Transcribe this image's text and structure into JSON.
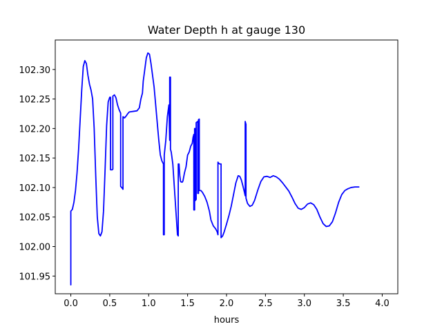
{
  "chart_data": {
    "type": "line",
    "title": "Water Depth h at gauge 130",
    "xlabel": "hours",
    "ylabel": "",
    "xlim": [
      -0.2,
      4.2
    ],
    "ylim": [
      101.92,
      102.35
    ],
    "xticks": [
      0.0,
      0.5,
      1.0,
      1.5,
      2.0,
      2.5,
      3.0,
      3.5,
      4.0
    ],
    "xtick_labels": [
      "0.0",
      "0.5",
      "1.0",
      "1.5",
      "2.0",
      "2.5",
      "3.0",
      "3.5",
      "4.0"
    ],
    "yticks": [
      101.95,
      102.0,
      102.05,
      102.1,
      102.15,
      102.2,
      102.25,
      102.3
    ],
    "ytick_labels": [
      "101.95",
      "102.00",
      "102.05",
      "102.10",
      "102.15",
      "102.20",
      "102.25",
      "102.30"
    ],
    "grid": false,
    "series": [
      {
        "color": "#0000ff",
        "points": [
          [
            0.0,
            101.935
          ],
          [
            0.0,
            102.06
          ],
          [
            0.02,
            102.063
          ],
          [
            0.04,
            102.075
          ],
          [
            0.06,
            102.095
          ],
          [
            0.08,
            102.125
          ],
          [
            0.1,
            102.165
          ],
          [
            0.12,
            102.215
          ],
          [
            0.14,
            102.265
          ],
          [
            0.16,
            102.305
          ],
          [
            0.18,
            102.315
          ],
          [
            0.2,
            102.31
          ],
          [
            0.22,
            102.29
          ],
          [
            0.24,
            102.275
          ],
          [
            0.26,
            102.265
          ],
          [
            0.28,
            102.25
          ],
          [
            0.3,
            102.2
          ],
          [
            0.32,
            102.12
          ],
          [
            0.34,
            102.05
          ],
          [
            0.36,
            102.022
          ],
          [
            0.38,
            102.018
          ],
          [
            0.4,
            102.025
          ],
          [
            0.42,
            102.06
          ],
          [
            0.44,
            102.13
          ],
          [
            0.46,
            102.205
          ],
          [
            0.48,
            102.245
          ],
          [
            0.5,
            102.253
          ],
          [
            0.51,
            102.253
          ],
          [
            0.51,
            102.13
          ],
          [
            0.53,
            102.13
          ],
          [
            0.54,
            102.131
          ],
          [
            0.54,
            102.255
          ],
          [
            0.56,
            102.257
          ],
          [
            0.58,
            102.252
          ],
          [
            0.6,
            102.24
          ],
          [
            0.62,
            102.232
          ],
          [
            0.64,
            102.226
          ],
          [
            0.64,
            102.102
          ],
          [
            0.66,
            102.099
          ],
          [
            0.67,
            102.097
          ],
          [
            0.67,
            102.22
          ],
          [
            0.69,
            102.218
          ],
          [
            0.71,
            102.221
          ],
          [
            0.73,
            102.225
          ],
          [
            0.75,
            102.228
          ],
          [
            0.8,
            102.229
          ],
          [
            0.85,
            102.23
          ],
          [
            0.88,
            102.235
          ],
          [
            0.9,
            102.25
          ],
          [
            0.92,
            102.26
          ],
          [
            0.93,
            102.28
          ],
          [
            0.95,
            102.3
          ],
          [
            0.97,
            102.32
          ],
          [
            0.99,
            102.328
          ],
          [
            1.01,
            102.326
          ],
          [
            1.03,
            102.31
          ],
          [
            1.05,
            102.29
          ],
          [
            1.07,
            102.27
          ],
          [
            1.09,
            102.24
          ],
          [
            1.11,
            102.21
          ],
          [
            1.13,
            102.18
          ],
          [
            1.15,
            102.155
          ],
          [
            1.17,
            102.145
          ],
          [
            1.19,
            102.14
          ],
          [
            1.19,
            102.02
          ],
          [
            1.2,
            102.02
          ],
          [
            1.2,
            102.155
          ],
          [
            1.22,
            102.18
          ],
          [
            1.24,
            102.22
          ],
          [
            1.26,
            102.24
          ],
          [
            1.27,
            102.18
          ],
          [
            1.27,
            102.287
          ],
          [
            1.28,
            102.287
          ],
          [
            1.28,
            102.165
          ],
          [
            1.29,
            102.16
          ],
          [
            1.31,
            102.14
          ],
          [
            1.33,
            102.1
          ],
          [
            1.35,
            102.06
          ],
          [
            1.37,
            102.02
          ],
          [
            1.38,
            102.018
          ],
          [
            1.38,
            102.14
          ],
          [
            1.39,
            102.14
          ],
          [
            1.4,
            102.12
          ],
          [
            1.41,
            102.11
          ],
          [
            1.43,
            102.109
          ],
          [
            1.44,
            102.111
          ],
          [
            1.46,
            102.125
          ],
          [
            1.48,
            102.135
          ],
          [
            1.5,
            102.155
          ],
          [
            1.52,
            102.16
          ],
          [
            1.54,
            102.17
          ],
          [
            1.56,
            102.175
          ],
          [
            1.57,
            102.185
          ],
          [
            1.58,
            102.19
          ],
          [
            1.58,
            102.062
          ],
          [
            1.59,
            102.062
          ],
          [
            1.59,
            102.2
          ],
          [
            1.6,
            102.2
          ],
          [
            1.6,
            102.078
          ],
          [
            1.61,
            102.08
          ],
          [
            1.61,
            102.21
          ],
          [
            1.63,
            102.212
          ],
          [
            1.63,
            102.09
          ],
          [
            1.64,
            102.09
          ],
          [
            1.64,
            102.215
          ],
          [
            1.65,
            102.216
          ],
          [
            1.65,
            102.095
          ],
          [
            1.67,
            102.095
          ],
          [
            1.69,
            102.092
          ],
          [
            1.72,
            102.085
          ],
          [
            1.75,
            102.075
          ],
          [
            1.78,
            102.06
          ],
          [
            1.8,
            102.045
          ],
          [
            1.83,
            102.035
          ],
          [
            1.86,
            102.03
          ],
          [
            1.88,
            102.025
          ],
          [
            1.89,
            102.02
          ],
          [
            1.89,
            102.143
          ],
          [
            1.9,
            102.141
          ],
          [
            1.91,
            102.14
          ],
          [
            1.93,
            102.14
          ],
          [
            1.93,
            102.015
          ],
          [
            1.95,
            102.018
          ],
          [
            1.97,
            102.025
          ],
          [
            2.0,
            102.038
          ],
          [
            2.03,
            102.052
          ],
          [
            2.06,
            102.068
          ],
          [
            2.09,
            102.088
          ],
          [
            2.12,
            102.108
          ],
          [
            2.15,
            102.12
          ],
          [
            2.17,
            102.119
          ],
          [
            2.19,
            102.113
          ],
          [
            2.21,
            102.103
          ],
          [
            2.23,
            102.092
          ],
          [
            2.24,
            102.086
          ],
          [
            2.24,
            102.212
          ],
          [
            2.25,
            102.207
          ],
          [
            2.25,
            102.082
          ],
          [
            2.27,
            102.073
          ],
          [
            2.3,
            102.068
          ],
          [
            2.33,
            102.07
          ],
          [
            2.36,
            102.078
          ],
          [
            2.4,
            102.095
          ],
          [
            2.44,
            102.11
          ],
          [
            2.48,
            102.118
          ],
          [
            2.52,
            102.119
          ],
          [
            2.56,
            102.117
          ],
          [
            2.6,
            102.12
          ],
          [
            2.64,
            102.118
          ],
          [
            2.68,
            102.114
          ],
          [
            2.72,
            102.108
          ],
          [
            2.76,
            102.101
          ],
          [
            2.8,
            102.094
          ],
          [
            2.84,
            102.084
          ],
          [
            2.88,
            102.073
          ],
          [
            2.92,
            102.065
          ],
          [
            2.96,
            102.063
          ],
          [
            3.0,
            102.066
          ],
          [
            3.04,
            102.072
          ],
          [
            3.08,
            102.074
          ],
          [
            3.12,
            102.071
          ],
          [
            3.16,
            102.063
          ],
          [
            3.2,
            102.05
          ],
          [
            3.24,
            102.039
          ],
          [
            3.28,
            102.034
          ],
          [
            3.32,
            102.035
          ],
          [
            3.36,
            102.042
          ],
          [
            3.4,
            102.057
          ],
          [
            3.44,
            102.075
          ],
          [
            3.48,
            102.088
          ],
          [
            3.52,
            102.095
          ],
          [
            3.56,
            102.098
          ],
          [
            3.6,
            102.1
          ],
          [
            3.65,
            102.101
          ],
          [
            3.7,
            102.101
          ]
        ]
      }
    ]
  }
}
